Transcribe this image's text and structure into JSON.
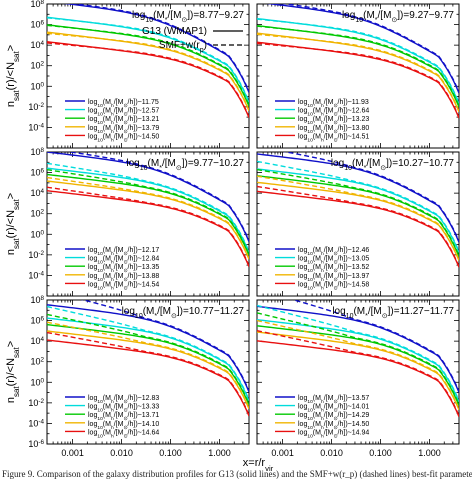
{
  "figure": {
    "ylabel_rows": [
      {
        "main": "n",
        "sub": "sat",
        "mid": "(r)/<N",
        "sub2": "sat",
        "tail": ">"
      },
      {
        "main": "n",
        "sub": "sat",
        "mid": "(r)/<N",
        "sub2": "sat",
        "tail": ">"
      },
      {
        "main": "n",
        "sub": "sat",
        "mid": "(r)/<N",
        "sub2": "sat",
        "tail": ">"
      }
    ],
    "xlabel": {
      "text": "x=r/r",
      "sub": "vir"
    },
    "caption": "Figure 9. Comparison of the galaxy distribution profiles for G13 (solid lines) and the SMF+w(r_p) (dashed lines) best-fit parameters"
  },
  "chart_data": {
    "type": "line",
    "x_scale": "log",
    "y_scale": "log",
    "xlim": [
      0.0003,
      4.0
    ],
    "ylim": [
      1e-06,
      100000000
    ],
    "x_tick_labels": [
      {
        "value": 0.001,
        "label": "0.001"
      },
      {
        "value": 0.01,
        "label": "0.010"
      },
      {
        "value": 0.1,
        "label": "0.100"
      },
      {
        "value": 1.0,
        "label": "1.000"
      }
    ],
    "y_tick_labels": [
      {
        "value": 100000000,
        "base": "10",
        "exp": "8"
      },
      {
        "value": 1000000,
        "base": "10",
        "exp": "6"
      },
      {
        "value": 10000,
        "base": "10",
        "exp": "4"
      },
      {
        "value": 100,
        "base": "10",
        "exp": "2"
      },
      {
        "value": 1,
        "base": "10",
        "exp": "0"
      },
      {
        "value": 0.01,
        "base": "10",
        "exp": "-2"
      },
      {
        "value": 0.0001,
        "base": "10",
        "exp": "-4"
      },
      {
        "value": 1e-06,
        "base": "10",
        "exp": "-6"
      }
    ],
    "line_styles": {
      "title": "G13 (WMAP1)",
      "dashed_label_main": "SMF+w(r",
      "dashed_label_sub": "p",
      "dashed_label_tail": ")"
    },
    "series_colors": [
      "#1010c8",
      "#00dcdc",
      "#00c800",
      "#f0b400",
      "#e81010"
    ],
    "legend_prefix": {
      "main": "log",
      "sub": "10",
      "mid": "(M",
      "sub2": "h",
      "tail": "/[M",
      "sub3": "⊙",
      "end": "/h])~"
    },
    "panels": [
      {
        "title": {
          "main": "log",
          "sub": "10",
          "mid": "(M",
          "sub2": "*",
          "mid2": "/[M",
          "sub3": "⊙",
          "tail": "])=8.77−9.27"
        },
        "series": [
          {
            "halo_mass": "11.75",
            "norm": 10000000,
            "scale": 0.06,
            "solid_steepness": 1.0,
            "dashed_shift": 1.0
          },
          {
            "halo_mass": "12.57",
            "norm": 200000,
            "scale": 0.11,
            "solid_steepness": 1.0,
            "dashed_shift": 0.9
          },
          {
            "halo_mass": "13.21",
            "norm": 30000,
            "scale": 0.16,
            "solid_steepness": 1.0,
            "dashed_shift": 0.9
          },
          {
            "halo_mass": "13.79",
            "norm": 5000,
            "scale": 0.21,
            "solid_steepness": 1.0,
            "dashed_shift": 0.85
          },
          {
            "halo_mass": "14.50",
            "norm": 500,
            "scale": 0.28,
            "solid_steepness": 1.0,
            "dashed_shift": 0.85
          }
        ]
      },
      {
        "title": {
          "main": "log",
          "sub": "10",
          "mid": "(M",
          "sub2": "*",
          "mid2": "/[M",
          "sub3": "⊙",
          "tail": "])=9.27−9.77"
        },
        "series": [
          {
            "halo_mass": "11.93",
            "norm": 8000000,
            "scale": 0.062,
            "solid_steepness": 1.0,
            "dashed_shift": 1.1
          },
          {
            "halo_mass": "12.64",
            "norm": 150000,
            "scale": 0.11,
            "solid_steepness": 1.0,
            "dashed_shift": 0.9
          },
          {
            "halo_mass": "13.23",
            "norm": 25000,
            "scale": 0.16,
            "solid_steepness": 1.0,
            "dashed_shift": 0.9
          },
          {
            "halo_mass": "13.80",
            "norm": 4000,
            "scale": 0.21,
            "solid_steepness": 1.0,
            "dashed_shift": 0.85
          },
          {
            "halo_mass": "14.51",
            "norm": 450,
            "scale": 0.28,
            "solid_steepness": 1.0,
            "dashed_shift": 0.85
          }
        ]
      },
      {
        "title": {
          "main": "log",
          "sub": "10",
          "mid": "(M",
          "sub2": "*",
          "mid2": "/[M",
          "sub3": "⊙",
          "tail": "])=9.77−10.27"
        },
        "series": [
          {
            "halo_mass": "12.17",
            "norm": 5000000,
            "scale": 0.07,
            "solid_steepness": 1.0,
            "dashed_shift": 1.2
          },
          {
            "halo_mass": "12.84",
            "norm": 100000,
            "scale": 0.12,
            "solid_steepness": 1.0,
            "dashed_shift": 1.3
          },
          {
            "halo_mass": "13.35",
            "norm": 20000,
            "scale": 0.17,
            "solid_steepness": 1.0,
            "dashed_shift": 1.3
          },
          {
            "halo_mass": "13.88",
            "norm": 4000,
            "scale": 0.22,
            "solid_steepness": 1.0,
            "dashed_shift": 1.2
          },
          {
            "halo_mass": "14.54",
            "norm": 400,
            "scale": 0.28,
            "solid_steepness": 1.0,
            "dashed_shift": 1.2
          }
        ]
      },
      {
        "title": {
          "main": "log",
          "sub": "10",
          "mid": "(M",
          "sub2": "*",
          "mid2": "/[M",
          "sub3": "⊙",
          "tail": "])=10.27−10.77"
        },
        "series": [
          {
            "halo_mass": "12.46",
            "norm": 3000000,
            "scale": 0.08,
            "solid_steepness": 1.0,
            "dashed_shift": 1.5
          },
          {
            "halo_mass": "13.05",
            "norm": 80000,
            "scale": 0.13,
            "solid_steepness": 1.0,
            "dashed_shift": 1.5
          },
          {
            "halo_mass": "13.52",
            "norm": 15000,
            "scale": 0.17,
            "solid_steepness": 1.0,
            "dashed_shift": 1.4
          },
          {
            "halo_mass": "13.97",
            "norm": 3000,
            "scale": 0.22,
            "solid_steepness": 1.0,
            "dashed_shift": 1.4
          },
          {
            "halo_mass": "14.58",
            "norm": 350,
            "scale": 0.28,
            "solid_steepness": 1.0,
            "dashed_shift": 1.3
          }
        ]
      },
      {
        "title": {
          "main": "log",
          "sub": "10",
          "mid": "(M",
          "sub2": "*",
          "mid2": "/[M",
          "sub3": "⊙",
          "tail": "])=10.77−11.27"
        },
        "series": [
          {
            "halo_mass": "12.83",
            "norm": 1500000,
            "scale": 0.09,
            "solid_steepness": 1.0,
            "dashed_shift": 2.0
          },
          {
            "halo_mass": "13.33",
            "norm": 60000,
            "scale": 0.14,
            "solid_steepness": 1.0,
            "dashed_shift": 1.8
          },
          {
            "halo_mass": "13.71",
            "norm": 12000,
            "scale": 0.18,
            "solid_steepness": 1.0,
            "dashed_shift": 1.7
          },
          {
            "halo_mass": "14.10",
            "norm": 2500,
            "scale": 0.23,
            "solid_steepness": 1.0,
            "dashed_shift": 1.6
          },
          {
            "halo_mass": "14.64",
            "norm": 300,
            "scale": 0.28,
            "solid_steepness": 1.0,
            "dashed_shift": 1.5
          }
        ]
      },
      {
        "title": {
          "main": "log",
          "sub": "10",
          "mid": "(M",
          "sub2": "*",
          "mid2": "/[M",
          "sub3": "⊙",
          "tail": "])=11.27−11.77"
        },
        "series": [
          {
            "halo_mass": "13.57",
            "norm": 1000000,
            "scale": 0.1,
            "solid_steepness": 1.0,
            "dashed_shift": 2.2
          },
          {
            "halo_mass": "14.01",
            "norm": 40000,
            "scale": 0.15,
            "solid_steepness": 1.0,
            "dashed_shift": 2.0
          },
          {
            "halo_mass": "14.29",
            "norm": 9000,
            "scale": 0.19,
            "solid_steepness": 1.0,
            "dashed_shift": 1.9
          },
          {
            "halo_mass": "14.50",
            "norm": 2000,
            "scale": 0.23,
            "solid_steepness": 1.0,
            "dashed_shift": 1.8
          },
          {
            "halo_mass": "14.94",
            "norm": 250,
            "scale": 0.28,
            "solid_steepness": 1.0,
            "dashed_shift": 1.7
          }
        ]
      }
    ]
  }
}
